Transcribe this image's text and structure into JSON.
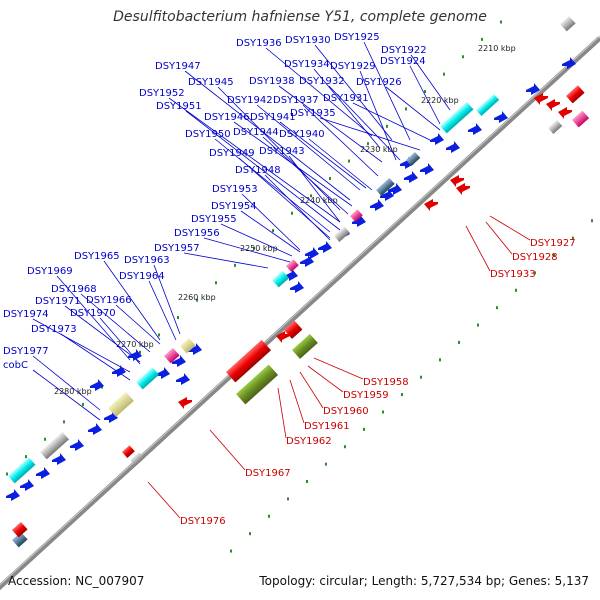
{
  "title": "Desulfitobacterium hafniense Y51, complete genome",
  "accession": "Accession: NC_007907",
  "summary": "Topology: circular; Length: 5,727,534 bp; Genes: 5,137",
  "colors": {
    "backbone": "#8c8c8c",
    "tick": "#2e8b2e",
    "forward_label": "#0000cc",
    "reverse_label": "#cc0000",
    "forward_gene": "#0b1fe0",
    "reverse_gene": "#e00000",
    "cyan": "#00e5e5",
    "olive": "#6b8e23",
    "khaki": "#d4d08a",
    "magenta": "#ff1493",
    "steel": "#4682b4"
  },
  "kbp_labels": [
    "2210 kbp",
    "2220 kbp",
    "2230 kbp",
    "2240 kbp",
    "2250 kbp",
    "2260 kbp",
    "2270 kbp",
    "2280 kbp"
  ],
  "forward_labels": [
    "DSY1936",
    "DSY1930",
    "DSY1925",
    "DSY1922",
    "DSY1934",
    "DSY1929",
    "DSY1924",
    "DSY1947",
    "DSY1945",
    "DSY1938",
    "DSY1932",
    "DSY1926",
    "DSY1952",
    "DSY1942",
    "DSY1937",
    "DSY1931",
    "DSY1951",
    "DSY1946",
    "DSY1941",
    "DSY1935",
    "DSY1950",
    "DSY1944",
    "DSY1940",
    "DSY1949",
    "DSY1943",
    "DSY1948",
    "DSY1953",
    "DSY1954",
    "DSY1955",
    "DSY1956",
    "DSY1957",
    "DSY1965",
    "DSY1963",
    "DSY1969",
    "DSY1964",
    "DSY1968",
    "DSY1971",
    "DSY1966",
    "DSY1974",
    "DSY1970",
    "DSY1973",
    "DSY1977",
    "cobC"
  ],
  "reverse_labels": [
    "DSY1927",
    "DSY1928",
    "DSY1933",
    "DSY1958",
    "DSY1959",
    "DSY1960",
    "DSY1961",
    "DSY1962",
    "DSY1967",
    "DSY1976"
  ]
}
